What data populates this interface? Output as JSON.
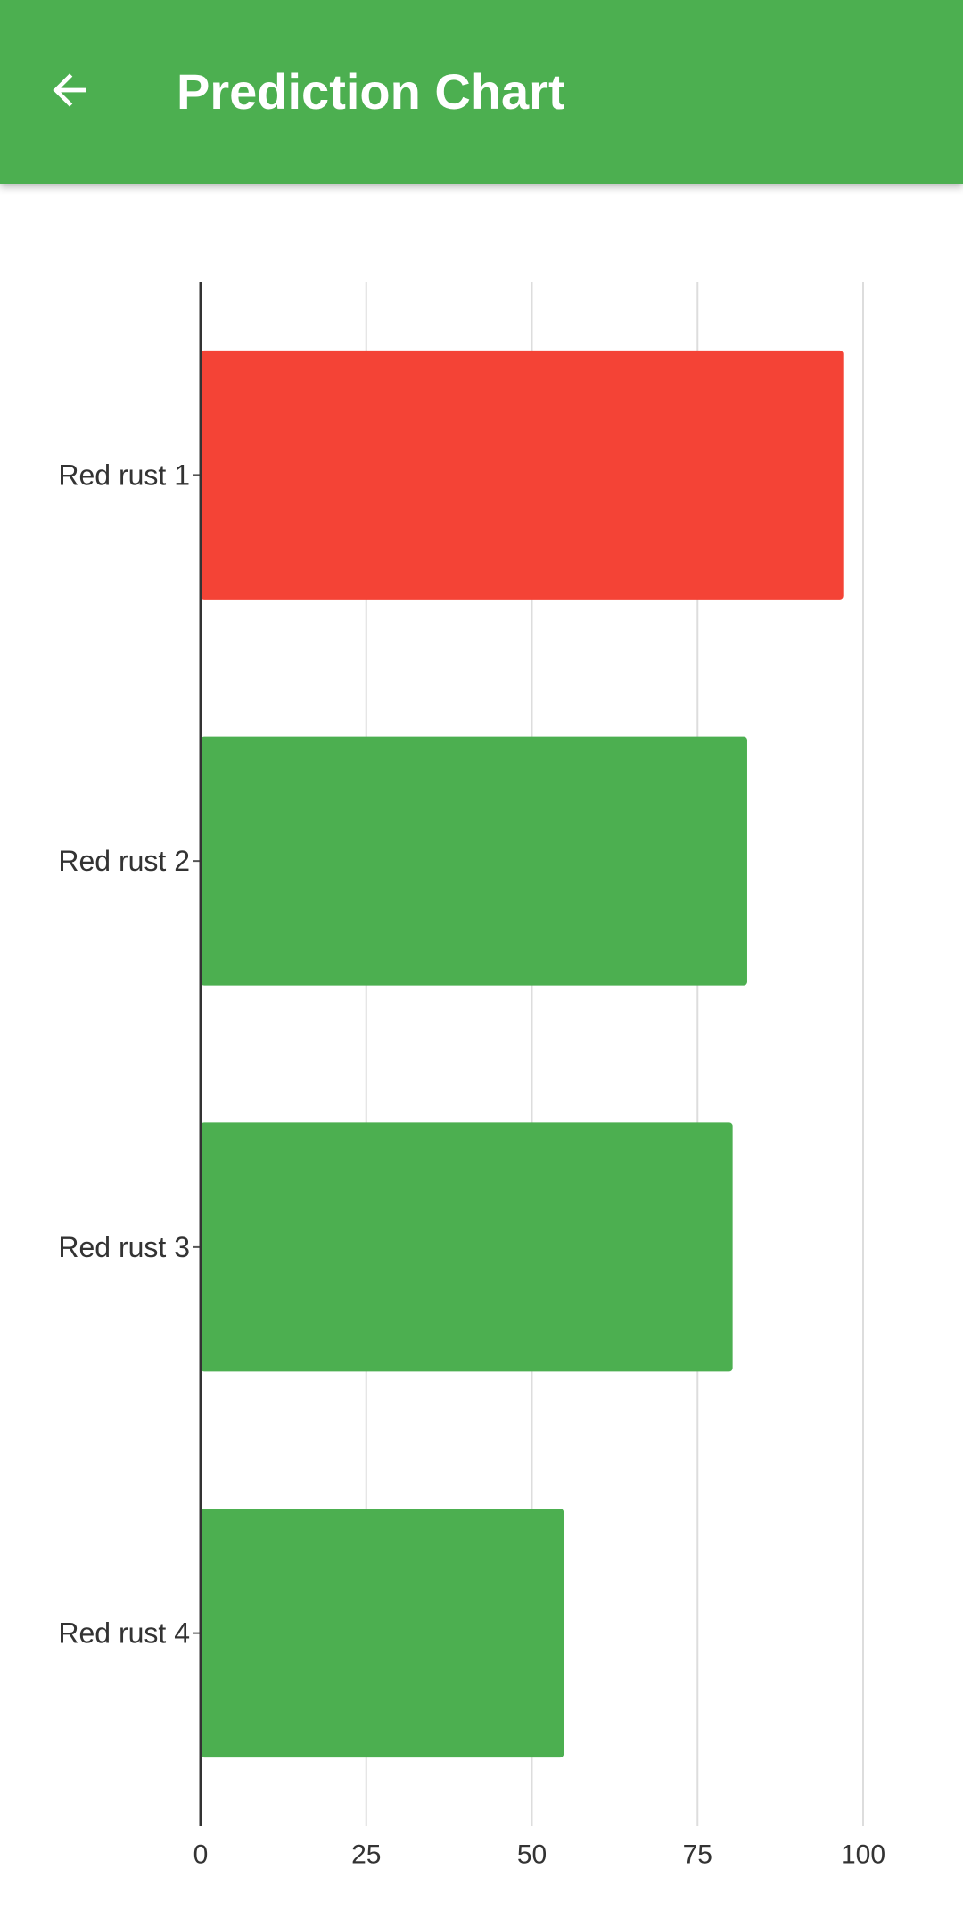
{
  "app_bar": {
    "title": "Prediction Chart",
    "back_icon": "arrow-left-icon",
    "background_color": "#4CAF50"
  },
  "chart_data": {
    "type": "bar",
    "orientation": "horizontal",
    "title": "",
    "xlabel": "",
    "ylabel": "",
    "categories": [
      "Red rust 1",
      "Red rust 2",
      "Red rust 3",
      "Red rust 4"
    ],
    "values": [
      97,
      82.5,
      80.3,
      54.8
    ],
    "bar_colors": [
      "#F44336",
      "#4CAF50",
      "#4CAF50",
      "#4CAF50"
    ],
    "xlim": [
      0,
      100
    ],
    "x_ticks": [
      0,
      25,
      50,
      75,
      100
    ],
    "x_tick_labels": [
      "0",
      "25",
      "50",
      "75",
      "100"
    ],
    "grid": true
  }
}
